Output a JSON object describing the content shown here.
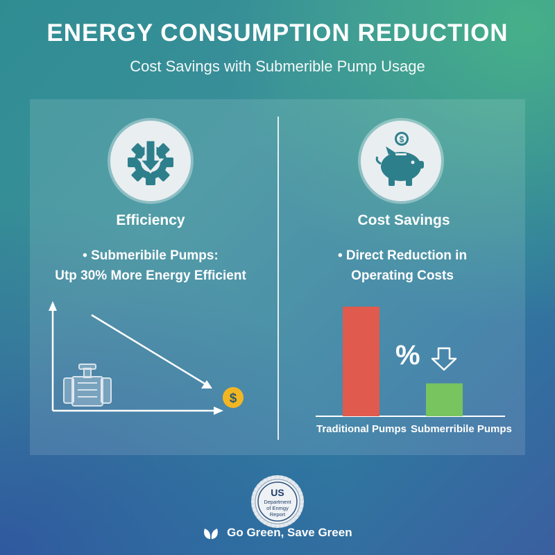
{
  "header": {
    "title": "ENERGY CONSUMPTION REDUCTION",
    "subtitle": "Cost Savings with Submerible Pump Usage"
  },
  "left": {
    "icon": "gear-down-arrow-icon",
    "heading": "Efficiency",
    "bullet_line1": "• Submeribile Pumps:",
    "bullet_line2": "Utp 30% More Energy Efficient",
    "graphic_icons": [
      "pump-icon",
      "dollar-coin-icon"
    ],
    "coin_symbol": "$"
  },
  "right": {
    "icon": "piggy-bank-icon",
    "heading": "Cost Savings",
    "bullet_line1": "• Direct Reduction in",
    "bullet_line2": "Operating Costs",
    "percent_symbol": "%"
  },
  "chart_data": {
    "type": "bar",
    "categories": [
      "Traditional Pumps",
      "Submerribile Pumps"
    ],
    "values": [
      100,
      30
    ],
    "colors": [
      "#e05a4d",
      "#78c45e"
    ],
    "title": "",
    "xlabel": "",
    "ylabel": ""
  },
  "seal": {
    "line1": "US",
    "line2": "Department",
    "line3": "of Enmgy",
    "line4": "Report"
  },
  "footer": {
    "text": "Go Green, Save Green",
    "icon": "leaf-icon"
  },
  "colors": {
    "bar_traditional": "#e05a4d",
    "bar_submersible": "#78c45e",
    "icon_teal": "#2e7f8c",
    "coin_gold": "#f2b623"
  }
}
